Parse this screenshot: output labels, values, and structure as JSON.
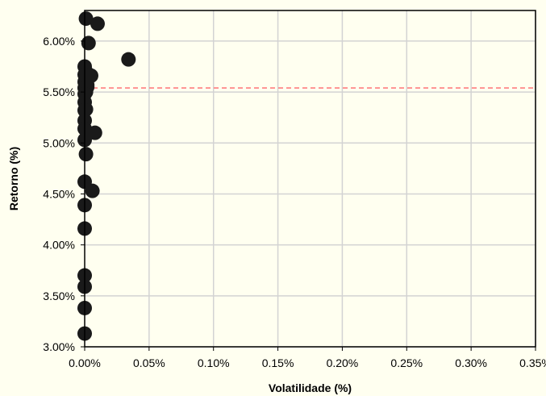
{
  "chart_data": {
    "type": "scatter",
    "xlabel": "Volatilidade (%)",
    "ylabel": "Retorno (%)",
    "xlim": [
      0,
      0.35
    ],
    "ylim": [
      3.0,
      6.3
    ],
    "xticks": [
      0,
      0.05,
      0.1,
      0.15,
      0.2,
      0.25,
      0.3,
      0.35
    ],
    "xtick_labels": [
      "0.00%",
      "0.05%",
      "0.10%",
      "0.15%",
      "0.20%",
      "0.25%",
      "0.30%",
      "0.35%"
    ],
    "yticks": [
      3.0,
      3.5,
      4.0,
      4.5,
      5.0,
      5.5,
      6.0
    ],
    "ytick_labels": [
      "3.00%",
      "3.50%",
      "4.00%",
      "4.50%",
      "5.00%",
      "5.50%",
      "6.00%"
    ],
    "grid": true,
    "reference_line": {
      "y": 5.54,
      "style": "dashed",
      "color": "#ff7f7f"
    },
    "colors": {
      "marker": "#1a1a1a",
      "background": "#fffff0",
      "grid": "#d3d3d3",
      "axis": "#000000"
    },
    "points": [
      {
        "x": 0.001,
        "y": 6.22
      },
      {
        "x": 0.003,
        "y": 5.98
      },
      {
        "x": 0.01,
        "y": 6.17
      },
      {
        "x": 0.034,
        "y": 5.82
      },
      {
        "x": 0.005,
        "y": 5.66
      },
      {
        "x": 0.002,
        "y": 5.57
      },
      {
        "x": 0.002,
        "y": 5.55
      },
      {
        "x": 0.001,
        "y": 5.7
      },
      {
        "x": 0.001,
        "y": 5.65
      },
      {
        "x": 0.001,
        "y": 5.58
      },
      {
        "x": 0.001,
        "y": 5.5
      },
      {
        "x": 0.001,
        "y": 5.33
      },
      {
        "x": 0.008,
        "y": 5.1
      },
      {
        "x": 0.001,
        "y": 4.89
      },
      {
        "x": 0.006,
        "y": 4.53
      },
      {
        "x": 0.0,
        "y": 5.75
      },
      {
        "x": 0.0,
        "y": 5.67
      },
      {
        "x": 0.0,
        "y": 5.6
      },
      {
        "x": 0.0,
        "y": 5.54
      },
      {
        "x": 0.0,
        "y": 5.48
      },
      {
        "x": 0.0,
        "y": 5.4
      },
      {
        "x": 0.0,
        "y": 5.32
      },
      {
        "x": 0.0,
        "y": 5.22
      },
      {
        "x": 0.0,
        "y": 5.14
      },
      {
        "x": 0.0,
        "y": 5.03
      },
      {
        "x": 0.0,
        "y": 4.62
      },
      {
        "x": 0.0,
        "y": 4.39
      },
      {
        "x": 0.0,
        "y": 4.16
      },
      {
        "x": 0.0,
        "y": 3.7
      },
      {
        "x": 0.0,
        "y": 3.59
      },
      {
        "x": 0.0,
        "y": 3.38
      },
      {
        "x": 0.0,
        "y": 3.13
      }
    ]
  }
}
